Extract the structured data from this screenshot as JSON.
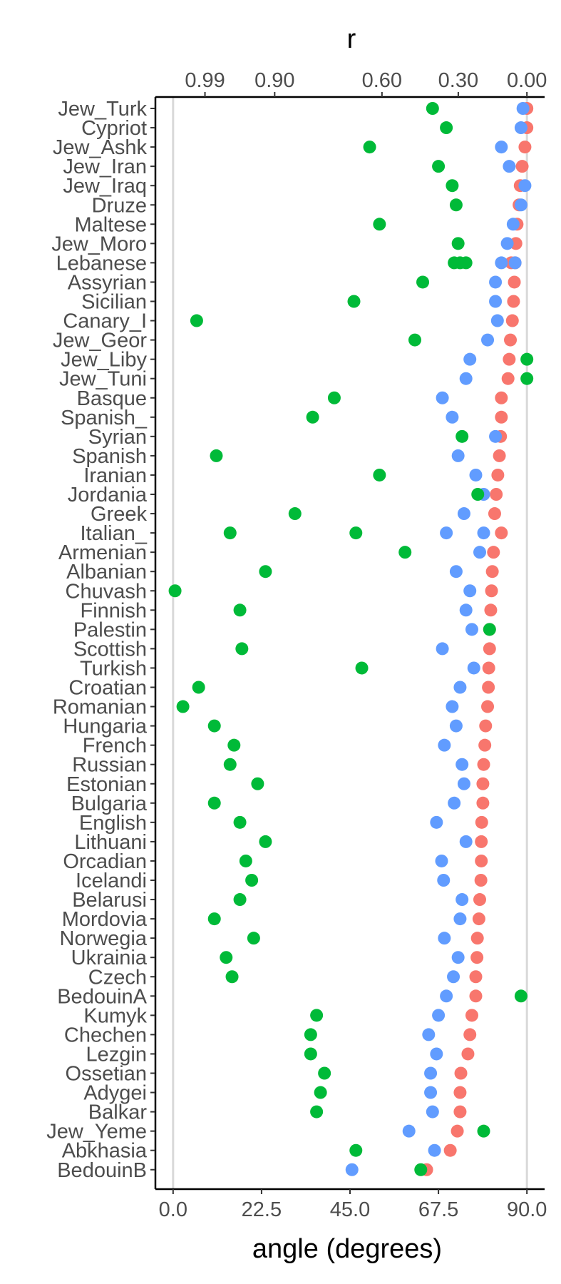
{
  "chart_data": {
    "type": "scatter",
    "title": "",
    "xlabel": "angle (degrees)",
    "top_axis_label": "r",
    "xlim": [
      -4.5,
      94.5
    ],
    "x_ticks": [
      0,
      22.5,
      45,
      67.5,
      90
    ],
    "x_tick_labels": [
      "0.0",
      "22.5",
      "45.0",
      "67.5",
      "90.0"
    ],
    "top_ticks": [
      0.99,
      0.9,
      0.6,
      0.3,
      0.0
    ],
    "top_tick_labels": [
      "0.99",
      "0.90",
      "0.60",
      "0.30",
      "0.00"
    ],
    "reference_lines": [
      0,
      90
    ],
    "grid": false,
    "legend": "none",
    "categories": [
      "Jew_Turk",
      "Cypriot",
      "Jew_Ashk",
      "Jew_Iran",
      "Jew_Iraq",
      "Druze",
      "Maltese",
      "Jew_Moro",
      "Lebanese",
      "Assyrian",
      "Sicilian",
      "Canary_I",
      "Jew_Geor",
      "Jew_Liby",
      "Jew_Tuni",
      "Basque",
      "Spanish_",
      "Syrian",
      "Spanish",
      "Iranian",
      "Jordania",
      "Greek",
      "Italian_",
      "Armenian",
      "Albanian",
      "Chuvash",
      "Finnish",
      "Palestin",
      "Scottish",
      "Turkish",
      "Croatian",
      "Romanian",
      "Hungaria",
      "French",
      "Russian",
      "Estonian",
      "Bulgaria",
      "English",
      "Lithuani",
      "Orcadian",
      "Icelandi",
      "Belarusi",
      "Mordovia",
      "Norwegia",
      "Ukrainia",
      "Czech",
      "BedouinA",
      "Kumyk",
      "Chechen",
      "Lezgin",
      "Ossetian",
      "Adygei",
      "Balkar",
      "Jew_Yeme",
      "Abkhasia",
      "BedouinB"
    ],
    "series": [
      {
        "color": "#F8766D",
        "points": [
          [
            0,
            90
          ],
          [
            1,
            90
          ],
          [
            2,
            89.5
          ],
          [
            3,
            88.8
          ],
          [
            4,
            88.3
          ],
          [
            5,
            88
          ],
          [
            6,
            87.5
          ],
          [
            7,
            87.2
          ],
          [
            8,
            87
          ],
          [
            8,
            86
          ],
          [
            9,
            86.8
          ],
          [
            10,
            86.6
          ],
          [
            11,
            86.3
          ],
          [
            12,
            85.8
          ],
          [
            13,
            85.5
          ],
          [
            14,
            85.2
          ],
          [
            15,
            83.5
          ],
          [
            16,
            83.5
          ],
          [
            17,
            83.3
          ],
          [
            18,
            83
          ],
          [
            19,
            82.6
          ],
          [
            20,
            82.2
          ],
          [
            21,
            81.8
          ],
          [
            22,
            83.5
          ],
          [
            23,
            81.5
          ],
          [
            24,
            81.2
          ],
          [
            25,
            81
          ],
          [
            26,
            80.8
          ],
          [
            27,
            80.5
          ],
          [
            28,
            80.5
          ],
          [
            29,
            80.3
          ],
          [
            30,
            80.2
          ],
          [
            31,
            80
          ],
          [
            32,
            79.5
          ],
          [
            33,
            79.3
          ],
          [
            34,
            79
          ],
          [
            35,
            78.8
          ],
          [
            36,
            78.8
          ],
          [
            37,
            78.5
          ],
          [
            38,
            78.4
          ],
          [
            39,
            78.4
          ],
          [
            40,
            78.3
          ],
          [
            41,
            78
          ],
          [
            42,
            77.8
          ],
          [
            43,
            77.4
          ],
          [
            44,
            77.3
          ],
          [
            45,
            77
          ],
          [
            46,
            77
          ],
          [
            47,
            76
          ],
          [
            48,
            75.5
          ],
          [
            49,
            75
          ],
          [
            50,
            73.2
          ],
          [
            51,
            73
          ],
          [
            52,
            73
          ],
          [
            53,
            72.3
          ],
          [
            54,
            70.5
          ],
          [
            55,
            64.5
          ]
        ]
      },
      {
        "color": "#619CFF",
        "points": [
          [
            0,
            89
          ],
          [
            1,
            88.5
          ],
          [
            2,
            83.5
          ],
          [
            3,
            85.5
          ],
          [
            4,
            89.5
          ],
          [
            5,
            88.5
          ],
          [
            6,
            86.5
          ],
          [
            7,
            85
          ],
          [
            8,
            83.5
          ],
          [
            8,
            87
          ],
          [
            9,
            82
          ],
          [
            10,
            82
          ],
          [
            11,
            82.5
          ],
          [
            12,
            80
          ],
          [
            13,
            75.5
          ],
          [
            14,
            74.5
          ],
          [
            15,
            68.5
          ],
          [
            16,
            71
          ],
          [
            17,
            82
          ],
          [
            18,
            72.5
          ],
          [
            19,
            77
          ],
          [
            20,
            79
          ],
          [
            21,
            74
          ],
          [
            22,
            79
          ],
          [
            22,
            69.5
          ],
          [
            23,
            78
          ],
          [
            24,
            72
          ],
          [
            25,
            75.5
          ],
          [
            26,
            74.5
          ],
          [
            27,
            76
          ],
          [
            28,
            68.5
          ],
          [
            29,
            76.5
          ],
          [
            30,
            73
          ],
          [
            31,
            71
          ],
          [
            32,
            72
          ],
          [
            33,
            69
          ],
          [
            34,
            73.5
          ],
          [
            35,
            74
          ],
          [
            36,
            71.5
          ],
          [
            37,
            67
          ],
          [
            38,
            74.5
          ],
          [
            39,
            68.3
          ],
          [
            40,
            68.8
          ],
          [
            41,
            73.5
          ],
          [
            42,
            73
          ],
          [
            43,
            69
          ],
          [
            44,
            72.5
          ],
          [
            45,
            71.3
          ],
          [
            46,
            69.5
          ],
          [
            47,
            67.5
          ],
          [
            48,
            65
          ],
          [
            49,
            67
          ],
          [
            50,
            65.5
          ],
          [
            51,
            65.5
          ],
          [
            52,
            66
          ],
          [
            53,
            60
          ],
          [
            54,
            66.5
          ],
          [
            55,
            45.5
          ]
        ]
      },
      {
        "color": "#00BA38",
        "points": [
          [
            0,
            66
          ],
          [
            1,
            69.5
          ],
          [
            2,
            50
          ],
          [
            3,
            67.5
          ],
          [
            4,
            71
          ],
          [
            5,
            72
          ],
          [
            6,
            52.5
          ],
          [
            7,
            72.5
          ],
          [
            8,
            71.5
          ],
          [
            8,
            73
          ],
          [
            8,
            74.5
          ],
          [
            9,
            63.5
          ],
          [
            10,
            46
          ],
          [
            11,
            6
          ],
          [
            12,
            61.5
          ],
          [
            13,
            90
          ],
          [
            14,
            90
          ],
          [
            15,
            41
          ],
          [
            16,
            35.5
          ],
          [
            17,
            73.5
          ],
          [
            18,
            11
          ],
          [
            19,
            52.5
          ],
          [
            20,
            77.5
          ],
          [
            21,
            31
          ],
          [
            22,
            14.5
          ],
          [
            22,
            46.5
          ],
          [
            23,
            59
          ],
          [
            24,
            23.5
          ],
          [
            25,
            0.5
          ],
          [
            26,
            17
          ],
          [
            27,
            80.5
          ],
          [
            28,
            17.5
          ],
          [
            29,
            48
          ],
          [
            30,
            6.5
          ],
          [
            31,
            2.5
          ],
          [
            32,
            10.5
          ],
          [
            33,
            15.5
          ],
          [
            34,
            14.5
          ],
          [
            35,
            21.5
          ],
          [
            36,
            10.5
          ],
          [
            37,
            17
          ],
          [
            38,
            23.5
          ],
          [
            39,
            18.5
          ],
          [
            40,
            20
          ],
          [
            41,
            17
          ],
          [
            42,
            10.5
          ],
          [
            43,
            20.5
          ],
          [
            44,
            13.5
          ],
          [
            45,
            15
          ],
          [
            46,
            88.5
          ],
          [
            47,
            36.5
          ],
          [
            48,
            35
          ],
          [
            49,
            35
          ],
          [
            50,
            38.5
          ],
          [
            51,
            37.5
          ],
          [
            52,
            36.5
          ],
          [
            53,
            79
          ],
          [
            54,
            46.5
          ],
          [
            55,
            63
          ]
        ]
      }
    ]
  }
}
